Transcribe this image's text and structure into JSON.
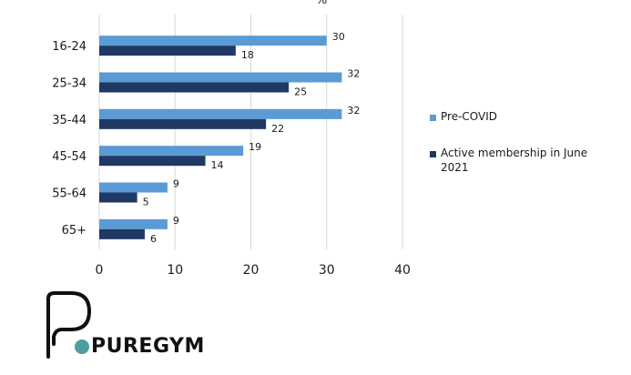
{
  "chart_data": {
    "type": "bar",
    "orientation": "horizontal",
    "unit_label": "%",
    "categories": [
      "16-24",
      "25-34",
      "35-44",
      "45-54",
      "55-64",
      "65+"
    ],
    "series": [
      {
        "name": "Pre-COVID",
        "color": "#5b9bd5",
        "values": [
          30,
          32,
          32,
          19,
          9,
          9
        ]
      },
      {
        "name": "Active membership in June 2021",
        "color": "#1f3864",
        "values": [
          18,
          25,
          22,
          14,
          5,
          6
        ]
      }
    ],
    "xlim": [
      0,
      40
    ],
    "xticks": [
      0,
      10,
      20,
      30,
      40
    ],
    "grid": true,
    "legend_position": "right"
  },
  "brand": {
    "name": "PUREGYM",
    "accent_color": "#4a9ea0",
    "icon": "puregym-logo-icon"
  }
}
